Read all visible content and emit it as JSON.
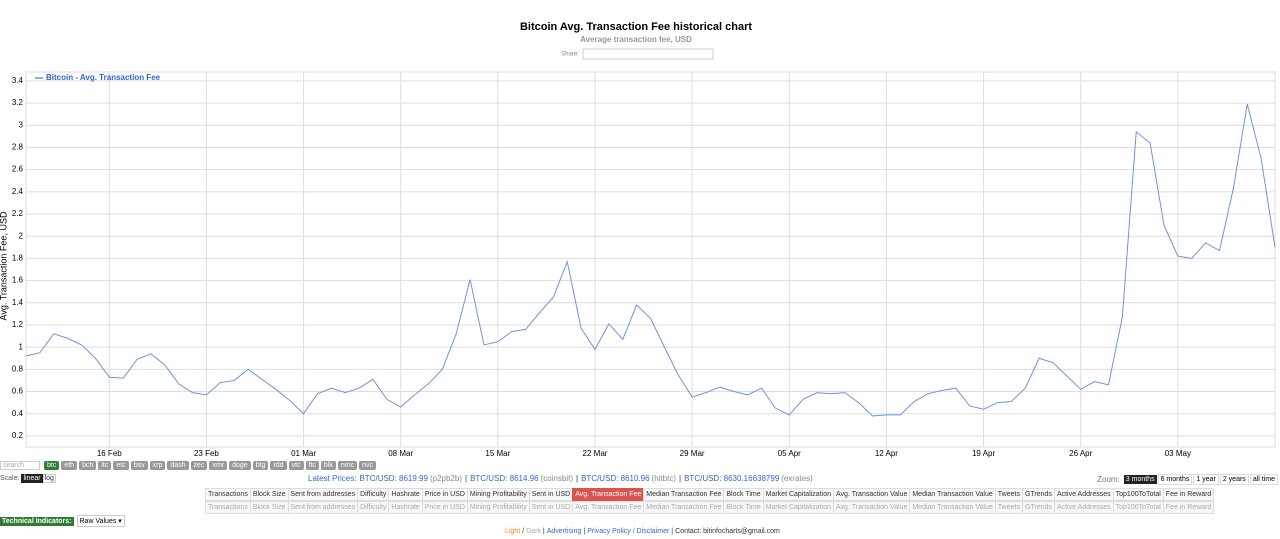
{
  "chart_data": {
    "type": "line",
    "title": "Bitcoin Avg. Transaction Fee historical chart",
    "subtitle": "Average transaction fee, USD",
    "y_label": "Avg. Transaction Fee, USD",
    "grid": true,
    "legend": "top-left",
    "categories": [
      null,
      null,
      null,
      null,
      null,
      null,
      "16 Feb",
      null,
      null,
      null,
      null,
      null,
      null,
      "23 Feb",
      null,
      null,
      null,
      null,
      null,
      null,
      "01 Mar",
      null,
      null,
      null,
      null,
      null,
      null,
      "08 Mar",
      null,
      null,
      null,
      null,
      null,
      null,
      "15 Mar",
      null,
      null,
      null,
      null,
      null,
      null,
      "22 Mar",
      null,
      null,
      null,
      null,
      null,
      null,
      "29 Mar",
      null,
      null,
      null,
      null,
      null,
      null,
      "05 Apr",
      null,
      null,
      null,
      null,
      null,
      null,
      "12 Apr",
      null,
      null,
      null,
      null,
      null,
      null,
      "19 Apr",
      null,
      null,
      null,
      null,
      null,
      null,
      "26 Apr",
      null,
      null,
      null,
      null,
      null,
      null,
      "03 May",
      null,
      null,
      null,
      null,
      null,
      null,
      null
    ],
    "series": [
      {
        "name": "Bitcoin - Avg. Transaction Fee",
        "color": "#6f95d6",
        "values": [
          0.92,
          0.95,
          1.12,
          1.08,
          1.02,
          0.9,
          0.73,
          0.72,
          0.89,
          0.94,
          0.84,
          0.67,
          0.59,
          0.57,
          0.68,
          0.7,
          0.8,
          0.71,
          0.62,
          0.52,
          0.4,
          0.58,
          0.63,
          0.59,
          0.63,
          0.71,
          0.53,
          0.46,
          0.57,
          0.67,
          0.8,
          1.12,
          1.61,
          1.02,
          1.05,
          1.14,
          1.16,
          1.31,
          1.45,
          1.77,
          1.17,
          0.98,
          1.21,
          1.07,
          1.38,
          1.26,
          1.0,
          0.75,
          0.55,
          0.59,
          0.64,
          0.6,
          0.57,
          0.63,
          0.45,
          0.39,
          0.53,
          0.59,
          0.58,
          0.59,
          0.5,
          0.38,
          0.39,
          0.39,
          0.51,
          0.58,
          0.61,
          0.63,
          0.47,
          0.44,
          0.5,
          0.51,
          0.63,
          0.9,
          0.86,
          0.74,
          0.62,
          0.69,
          0.66,
          1.27,
          2.94,
          2.84,
          2.1,
          1.82,
          1.8,
          1.94,
          1.87,
          2.43,
          3.19,
          2.7,
          1.9
        ]
      }
    ],
    "ylim": [
      0.1,
      3.48
    ],
    "yticks": [
      0.2,
      0.4,
      0.6,
      0.8,
      1,
      1.2,
      1.4,
      1.6,
      1.8,
      2,
      2.2,
      2.4,
      2.6,
      2.8,
      3,
      3.2,
      3.4
    ]
  },
  "ui": {
    "share": "Share:",
    "search": "search",
    "coins": [
      "btc",
      "eth",
      "bch",
      "ltc",
      "etc",
      "bsv",
      "xrp",
      "dash",
      "zec",
      "xmr",
      "doge",
      "btg",
      "rdd",
      "vtc",
      "ftc",
      "blk",
      "nmc",
      "nvc"
    ],
    "scale": {
      "label": "Scale:",
      "options": [
        "linear",
        "log"
      ]
    },
    "prices": {
      "label": "Latest Prices:",
      "items": [
        {
          "price": "BTC/USD: 8619.99",
          "source": "(p2pb2b)"
        },
        {
          "price": "BTC/USD: 8614.96",
          "source": "(coinsbit)"
        },
        {
          "price": "BTC/USD: 8610.96",
          "source": "(hitbtc)"
        },
        {
          "price": "BTC/USD: 8630.16638799",
          "source": "(exrates)"
        }
      ]
    },
    "metrics": [
      "Transactions",
      "Block Size",
      "Sent from addresses",
      "Difficulty",
      "Hashrate",
      "Price in USD",
      "Mining Profitability",
      "Sent in USD",
      "Avg. Transaction Fee",
      "Median Transaction Fee",
      "Block Time",
      "Market Capitalization",
      "Avg. Transaction Value",
      "Median Transaction Value",
      "Tweets",
      "GTrends",
      "Active Addresses",
      "Top100ToTotal",
      "Fee in Reward"
    ],
    "zoom": {
      "label": "Zoom:",
      "options": [
        "3 months",
        "6 months",
        "1 year",
        "2 years",
        "all time"
      ]
    },
    "indicators": {
      "label": "Technical Indicators:",
      "select": "Raw Values ▾"
    },
    "footer": [
      "Light",
      "/",
      "Dark",
      "|",
      "Advertising",
      "|",
      "Privacy Policy / Disclaimer",
      "|",
      "Contact: bitinfocharts@gmail.com"
    ]
  }
}
